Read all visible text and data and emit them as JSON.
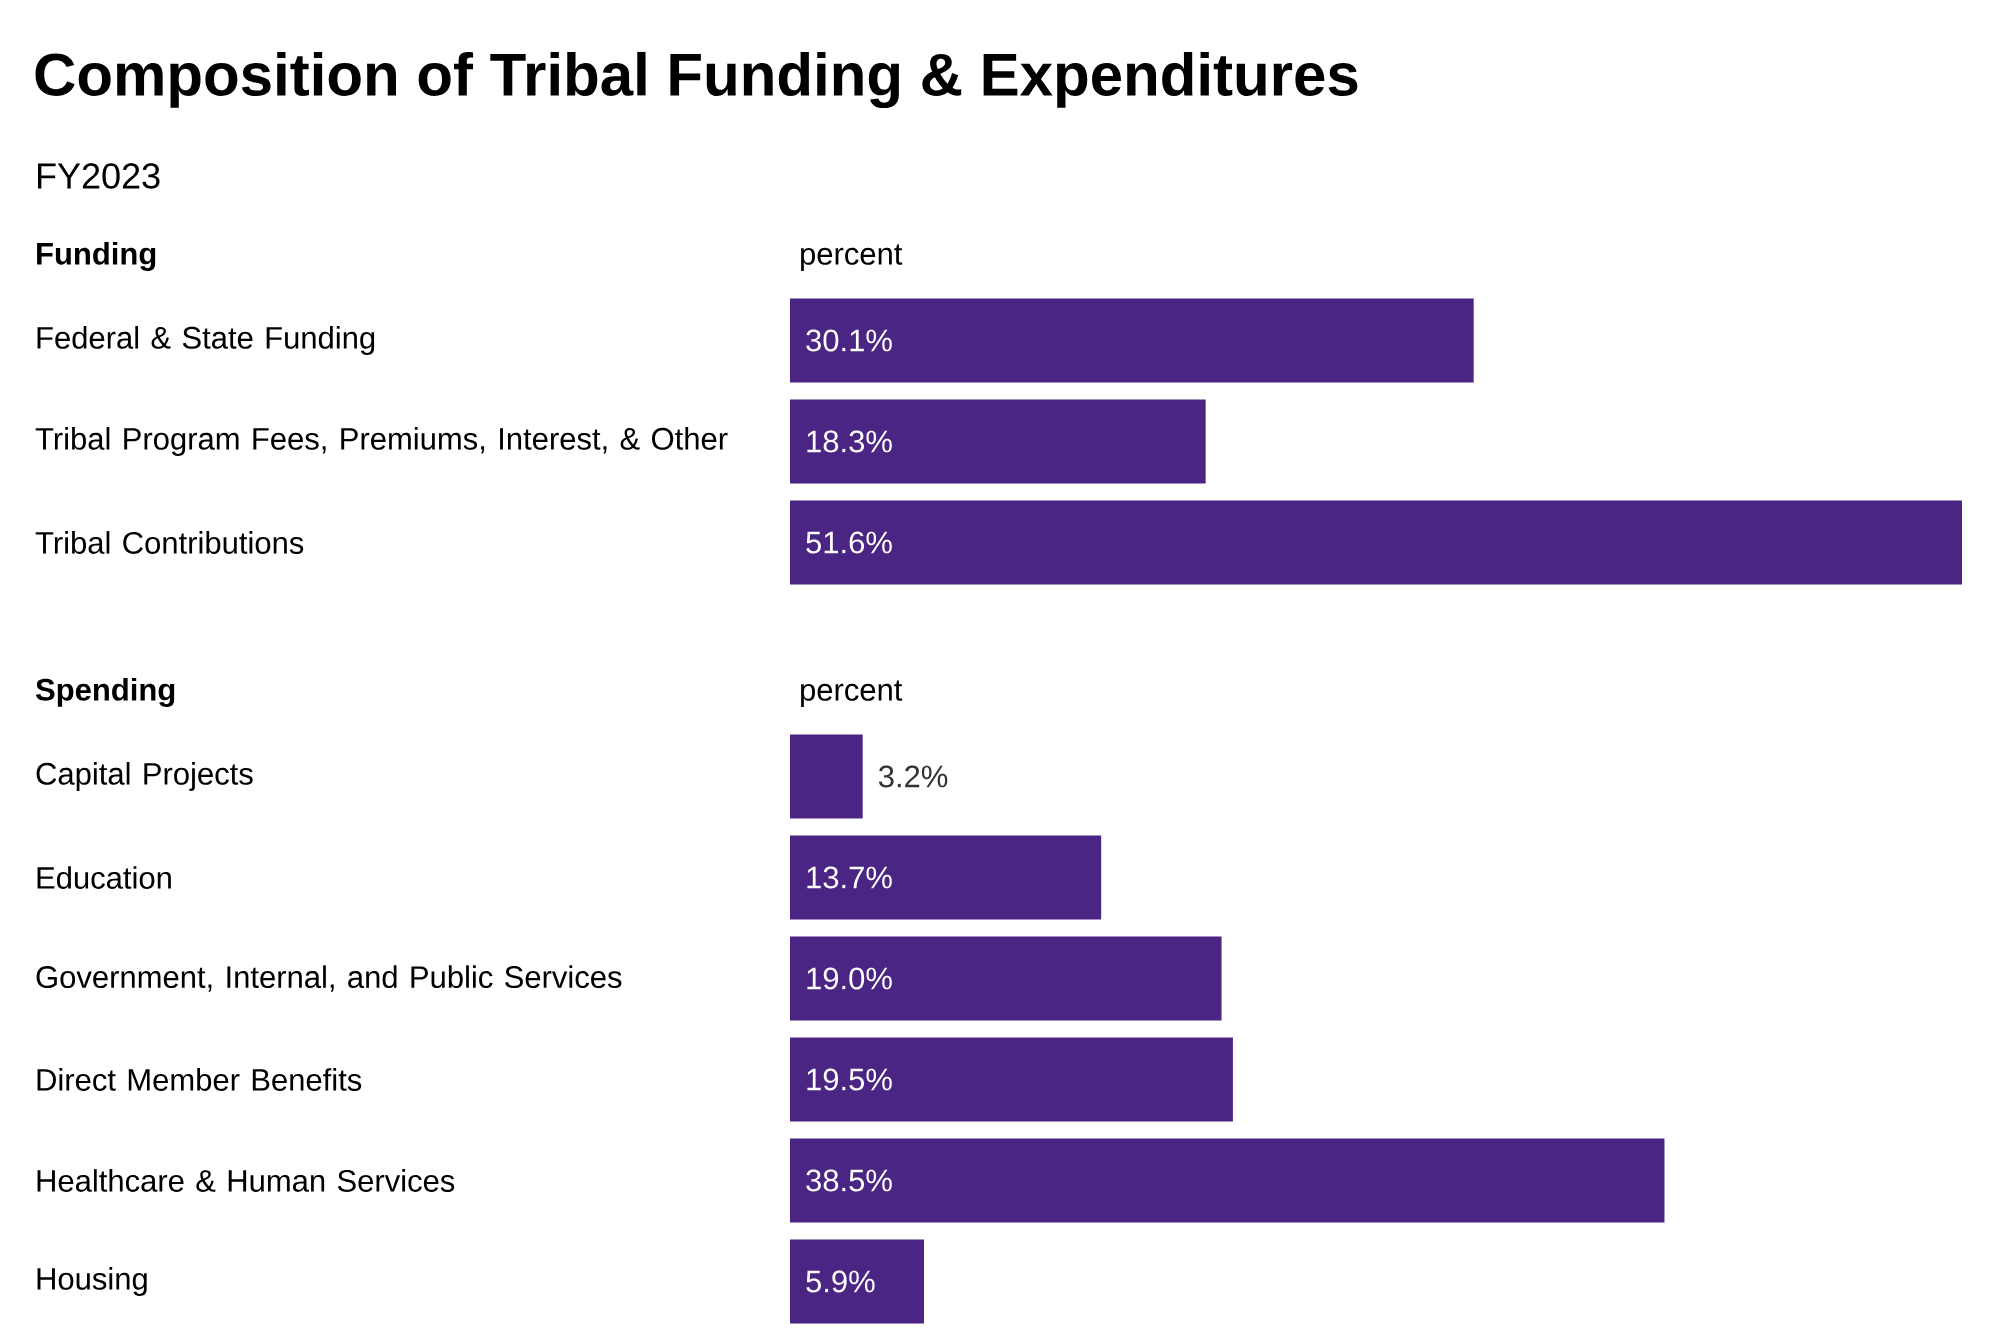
{
  "chart_data": [
    {
      "type": "bar",
      "orientation": "horizontal",
      "title": "Composition of Tribal Funding & Expenditures",
      "subtitle": "FY2023",
      "ylabel": "Funding",
      "xlabel": "percent",
      "categories": [
        "Federal & State Funding",
        "Tribal Program Fees, Premiums, Interest, & Other",
        "Tribal Contributions"
      ],
      "values": [
        30.1,
        18.3,
        51.6
      ],
      "value_labels": [
        "30.1%",
        "18.3%",
        "51.6%"
      ],
      "color": "#4b2583",
      "tick_labels": "y"
    },
    {
      "type": "bar",
      "orientation": "horizontal",
      "ylabel": "Spending",
      "xlabel": "percent",
      "categories": [
        "Capital Projects",
        "Education",
        "Government, Internal, and Public Services",
        "Direct Member Benefits",
        "Healthcare & Human Services",
        "Housing"
      ],
      "values": [
        3.2,
        13.7,
        19.0,
        19.5,
        38.5,
        5.9
      ],
      "value_labels": [
        "3.2%",
        "13.7%",
        "19.0%",
        "19.5%",
        "38.5%",
        "5.9%"
      ],
      "color": "#4b2583",
      "tick_labels": "y"
    }
  ]
}
